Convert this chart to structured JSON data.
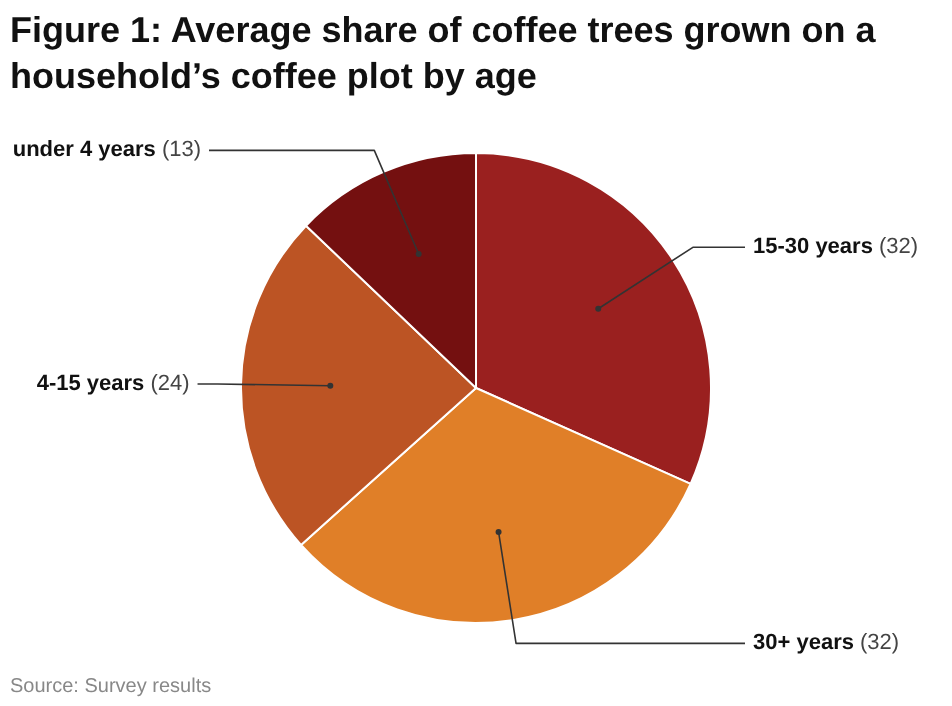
{
  "chart_data": {
    "type": "pie",
    "title": "Figure 1: Average share of coffee trees grown on a household’s coffee plot by age",
    "categories": [
      "15-30 years",
      "30+ years",
      "4-15 years",
      "under 4 years"
    ],
    "values": [
      32,
      32,
      24,
      13
    ],
    "colors": [
      "#9a201f",
      "#e07f28",
      "#bc5424",
      "#741010"
    ],
    "value_labels": [
      "(32)",
      "(32)",
      "(24)",
      "(13)"
    ],
    "legend": false,
    "annotations": [
      "Source: Survey results"
    ]
  }
}
